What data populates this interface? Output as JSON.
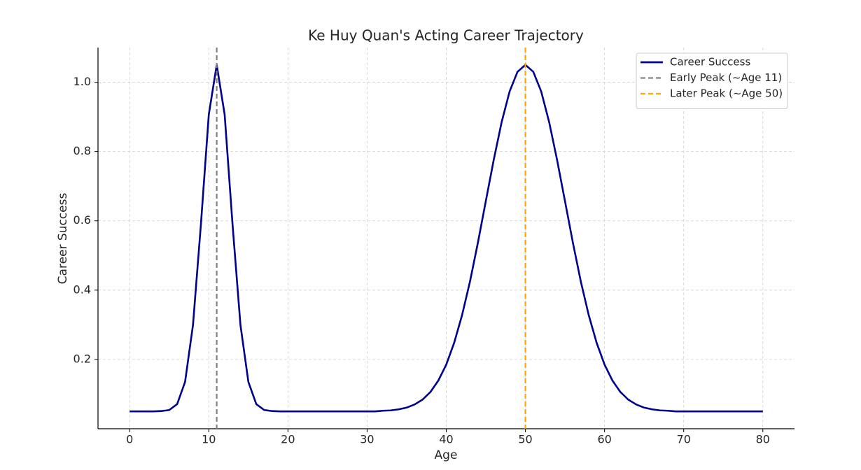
{
  "chart_data": {
    "type": "line",
    "title": "Ke Huy Quan's Acting Career Trajectory",
    "x_label": "Age",
    "y_label": "Career Success",
    "x": [
      0,
      1,
      2,
      3,
      4,
      5,
      6,
      7,
      8,
      9,
      10,
      11,
      12,
      13,
      14,
      15,
      16,
      17,
      18,
      19,
      20,
      21,
      22,
      23,
      24,
      25,
      26,
      27,
      28,
      29,
      30,
      31,
      32,
      33,
      34,
      35,
      36,
      37,
      38,
      39,
      40,
      41,
      42,
      43,
      44,
      45,
      46,
      47,
      48,
      49,
      50,
      51,
      52,
      53,
      54,
      55,
      56,
      57,
      58,
      59,
      60,
      61,
      62,
      63,
      64,
      65,
      66,
      67,
      68,
      69,
      70,
      71,
      72,
      73,
      74,
      75,
      76,
      77,
      78,
      79,
      80
    ],
    "series": [
      {
        "name": "Career Success",
        "color": "#00008b",
        "values": [
          0.05,
          0.05,
          0.05,
          0.05,
          0.051,
          0.054,
          0.071,
          0.135,
          0.299,
          0.589,
          0.907,
          1.05,
          0.907,
          0.589,
          0.299,
          0.135,
          0.071,
          0.054,
          0.051,
          0.05,
          0.05,
          0.05,
          0.05,
          0.05,
          0.05,
          0.05,
          0.05,
          0.05,
          0.05,
          0.05,
          0.05,
          0.05,
          0.052,
          0.053,
          0.056,
          0.061,
          0.07,
          0.084,
          0.106,
          0.139,
          0.185,
          0.248,
          0.328,
          0.425,
          0.537,
          0.657,
          0.776,
          0.885,
          0.973,
          1.03,
          1.05,
          1.03,
          0.973,
          0.885,
          0.776,
          0.657,
          0.537,
          0.425,
          0.328,
          0.248,
          0.185,
          0.139,
          0.106,
          0.084,
          0.07,
          0.061,
          0.056,
          0.053,
          0.052,
          0.05,
          0.05,
          0.05,
          0.05,
          0.05,
          0.05,
          0.05,
          0.05,
          0.05,
          0.05,
          0.05,
          0.05
        ]
      }
    ],
    "vlines": [
      {
        "name": "Early Peak (~Age 11)",
        "x": 11,
        "color": "#808080"
      },
      {
        "name": "Later Peak (~Age 50)",
        "x": 50,
        "color": "#ffa500"
      }
    ],
    "xlim": [
      -4,
      84
    ],
    "xticks": [
      0,
      10,
      20,
      30,
      40,
      50,
      60,
      70,
      80
    ],
    "ylim": [
      0,
      1.1
    ],
    "yticks": [
      0.2,
      0.4,
      0.6,
      0.8,
      {
        "value": 1.0,
        "label": "1.0"
      }
    ],
    "grid": true,
    "legend": "upper right"
  }
}
